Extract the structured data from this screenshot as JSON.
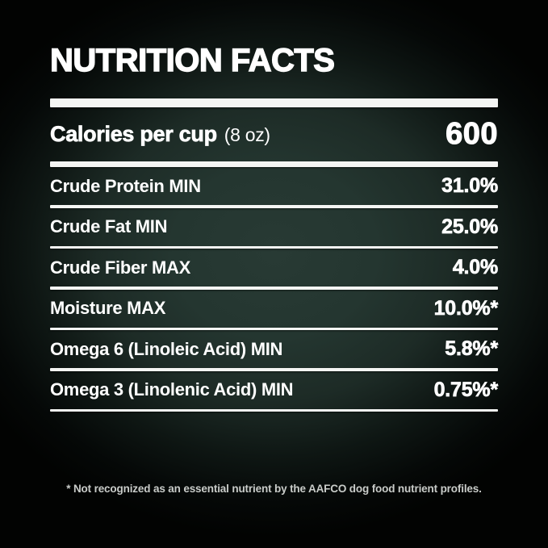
{
  "panel": {
    "title": "NUTRITION FACTS",
    "calories": {
      "label": "Calories per cup",
      "unit": "(8 oz)",
      "value": "600"
    },
    "rows": [
      {
        "label": "Crude Protein MIN",
        "value": "31.0%"
      },
      {
        "label": "Crude Fat MIN",
        "value": "25.0%"
      },
      {
        "label": "Crude Fiber MAX",
        "value": "4.0%"
      },
      {
        "label": "Moisture MAX",
        "value": "10.0%*"
      },
      {
        "label": "Omega 6 (Linoleic Acid) MIN",
        "value": "5.8%*"
      },
      {
        "label": "Omega 3 (Linolenic Acid) MIN",
        "value": "0.75%*"
      }
    ],
    "footnote": "* Not recognized as an essential nutrient by the AAFCO dog food nutrient profiles.",
    "colors": {
      "background_center": "#273933",
      "background_edge": "#020302",
      "rule": "#f4f5f3",
      "text": "#ffffff",
      "footnote_text": "#c9ccc9"
    }
  }
}
